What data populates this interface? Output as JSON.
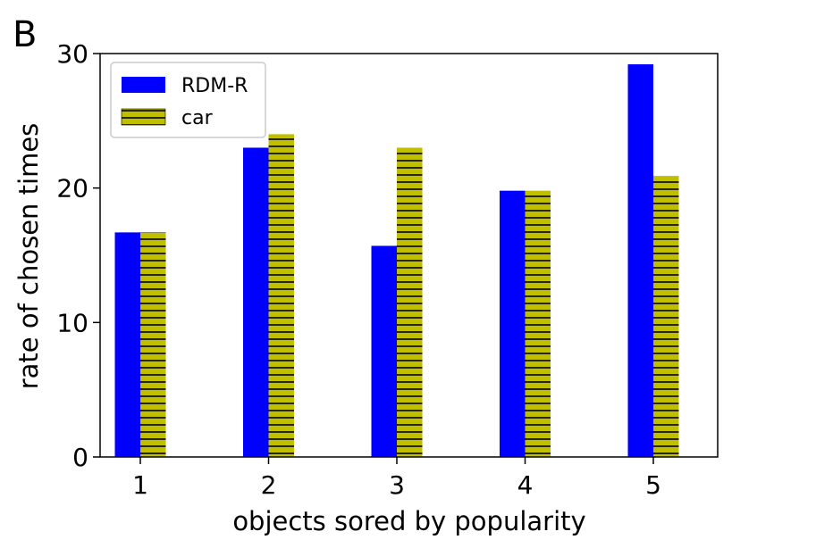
{
  "panel_label": "B",
  "chart_data": {
    "type": "bar",
    "categories": [
      "1",
      "2",
      "3",
      "4",
      "5"
    ],
    "series": [
      {
        "name": "RDM-R",
        "values": [
          16.7,
          23.0,
          15.7,
          19.8,
          29.2
        ],
        "color": "#0000ff",
        "pattern": "solid"
      },
      {
        "name": "car",
        "values": [
          16.7,
          24.0,
          23.0,
          19.8,
          20.9
        ],
        "color": "#bfbf00",
        "pattern": "horizontal-hatch"
      }
    ],
    "xlabel": "objects sored by popularity",
    "ylabel": "rate of chosen times",
    "ylim": [
      0,
      30
    ],
    "yticks": [
      "0",
      "10",
      "20",
      "30"
    ],
    "grid": false,
    "legend": "top-left"
  }
}
